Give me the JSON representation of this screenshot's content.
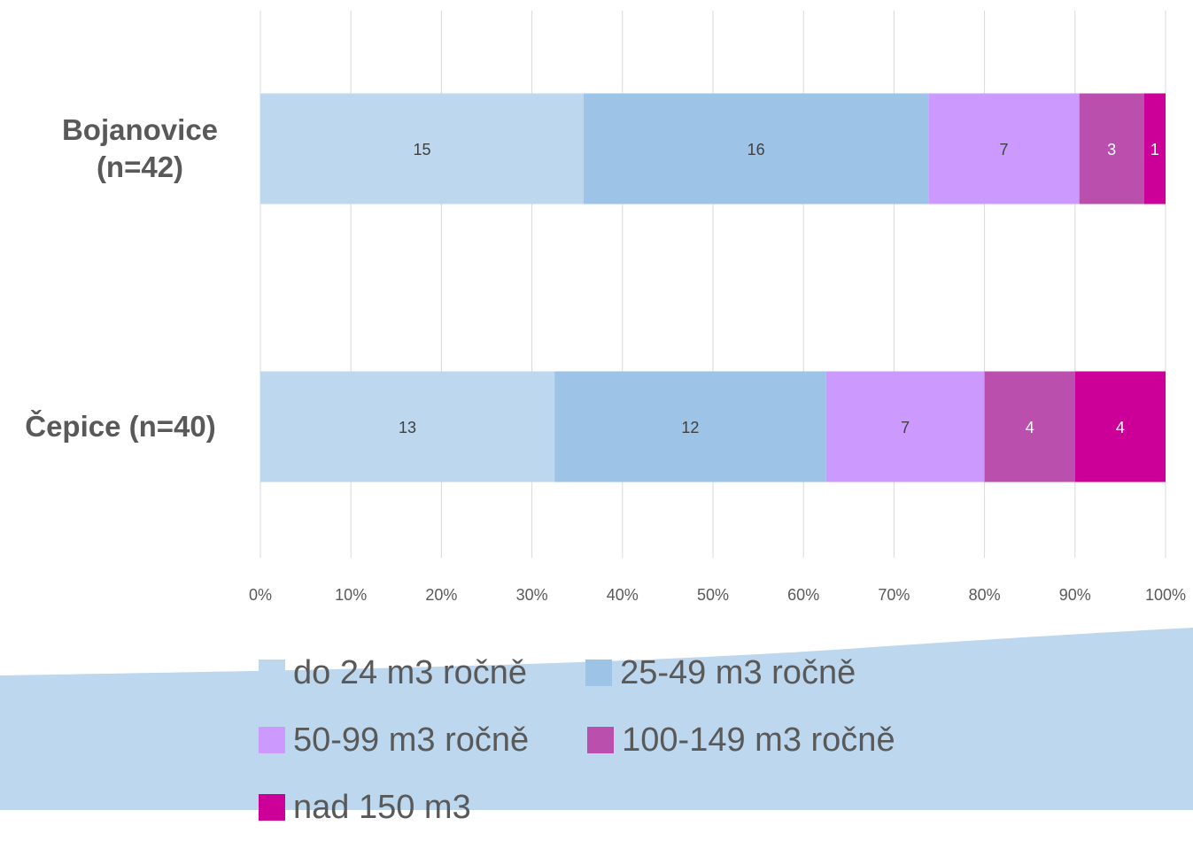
{
  "chart_data": {
    "type": "bar",
    "orientation": "horizontal",
    "stacking": "percent",
    "title": "",
    "xlabel": "",
    "ylabel": "",
    "xlim": [
      0,
      100
    ],
    "x_ticks": [
      "0%",
      "10%",
      "20%",
      "30%",
      "40%",
      "50%",
      "60%",
      "70%",
      "80%",
      "90%",
      "100%"
    ],
    "grid": true,
    "legend_position": "bottom",
    "categories": [
      "Bojanovice\n(n=42)",
      "Čepice (n=40)"
    ],
    "series": [
      {
        "name": "do 24 m3 ročně",
        "values": [
          15,
          13
        ],
        "color": "#bdd7ee",
        "label_color": "#404040"
      },
      {
        "name": "25-49 m3 ročně",
        "values": [
          16,
          12
        ],
        "color": "#9dc3e6",
        "label_color": "#404040"
      },
      {
        "name": "50-99 m3 ročně",
        "values": [
          7,
          7
        ],
        "color": "#cc99ff",
        "label_color": "#404040"
      },
      {
        "name": "100-149 m3 ročně",
        "values": [
          3,
          4
        ],
        "color": "#bb4fad",
        "label_color": "#ffffff"
      },
      {
        "name": "nad 150 m3",
        "values": [
          1,
          4
        ],
        "color": "#cc0099",
        "label_color": "#ffffff"
      }
    ]
  },
  "background": {
    "wave_color": "#bdd7ee"
  },
  "legend_layout": [
    [
      0,
      1
    ],
    [
      2,
      3
    ],
    [
      4
    ]
  ]
}
